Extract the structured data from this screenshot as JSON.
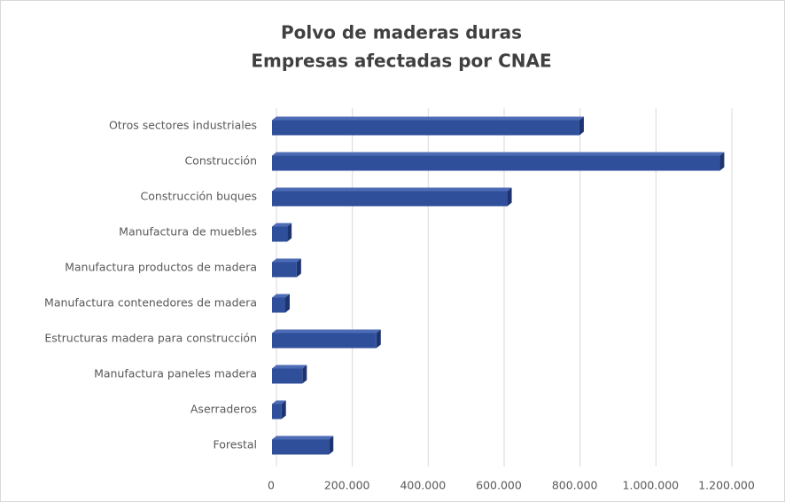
{
  "chart_data": {
    "type": "bar3d_horizontal",
    "title": "Polvo de maderas duras",
    "subtitle": "Empresas afectadas por CNAE",
    "categories": [
      "Otros sectores industriales",
      "Construcción",
      "Construcción buques",
      "Manufactura de muebles",
      "Manufactura productos de madera",
      "Manufactura contenedores de madera",
      "Estructuras madera para construcción",
      "Manufactura paneles madera",
      "Aserraderos",
      "Forestal"
    ],
    "values": [
      810000,
      1180000,
      620000,
      40000,
      65000,
      35000,
      275000,
      80000,
      25000,
      150000
    ],
    "color": "#2f4f9a",
    "xlim": [
      0,
      1200000
    ],
    "xticks": [
      0,
      {
        "value": 200000,
        "label": "200.000"
      },
      {
        "value": 400000,
        "label": "400.000"
      },
      {
        "value": 600000,
        "label": "600.000"
      },
      {
        "value": 800000,
        "label": "800.000"
      },
      {
        "value": 1000000,
        "label": "1.000.000"
      },
      {
        "value": 1200000,
        "label": "1.200.000"
      }
    ],
    "grid": true
  }
}
